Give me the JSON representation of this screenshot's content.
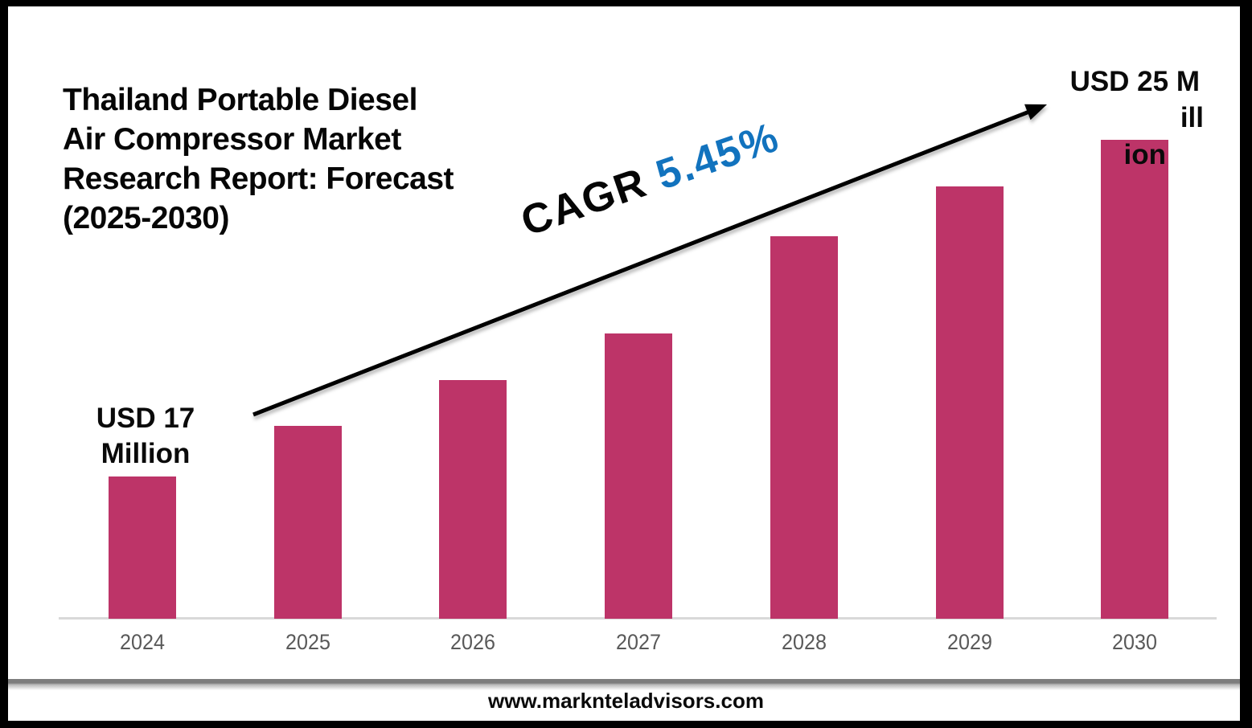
{
  "frame": {
    "border_color": "#000000",
    "background": "#ffffff"
  },
  "title": {
    "full_text": "Thailand Portable Diesel Air Compressor Market Research Report: Forecast (2025-2030)",
    "lines": [
      "Thailand Portable Diesel",
      "Air Compressor Market",
      "Research Report: Forecast",
      "(2025-2030)"
    ]
  },
  "annotation": {
    "cagr_prefix": "CAGR",
    "cagr_value": "5.45%",
    "cagr_value_color": "#1273BE",
    "arrow_color": "#000000"
  },
  "value_labels": {
    "start": {
      "full_text": "USD 17 Million",
      "lines": [
        "USD 17",
        "Million"
      ]
    },
    "end": {
      "full_text": "USD 25 Million",
      "lines": [
        "USD 25 M",
        "ill",
        "ion"
      ]
    }
  },
  "footer": {
    "url": "www.marknteladvisors.com"
  },
  "chart_data": {
    "type": "bar",
    "categories": [
      "2024",
      "2025",
      "2026",
      "2027",
      "2028",
      "2029",
      "2030"
    ],
    "values": [
      17,
      18.2,
      19.3,
      20.4,
      22.7,
      23.9,
      25
    ],
    "unit": "USD Million",
    "labeled_points": {
      "2024": "USD 17 Million",
      "2030": "USD 25 Million"
    },
    "title": "Thailand Portable Diesel Air Compressor Market Research Report: Forecast (2025-2030)",
    "annotations": [
      "CAGR 5.45%"
    ],
    "bar_color": "#BD3468",
    "axis_tick_color": "#595959",
    "baseline_color": "#D9D9D9",
    "xlabel": "",
    "ylabel": "",
    "grid": false,
    "legend": false
  }
}
